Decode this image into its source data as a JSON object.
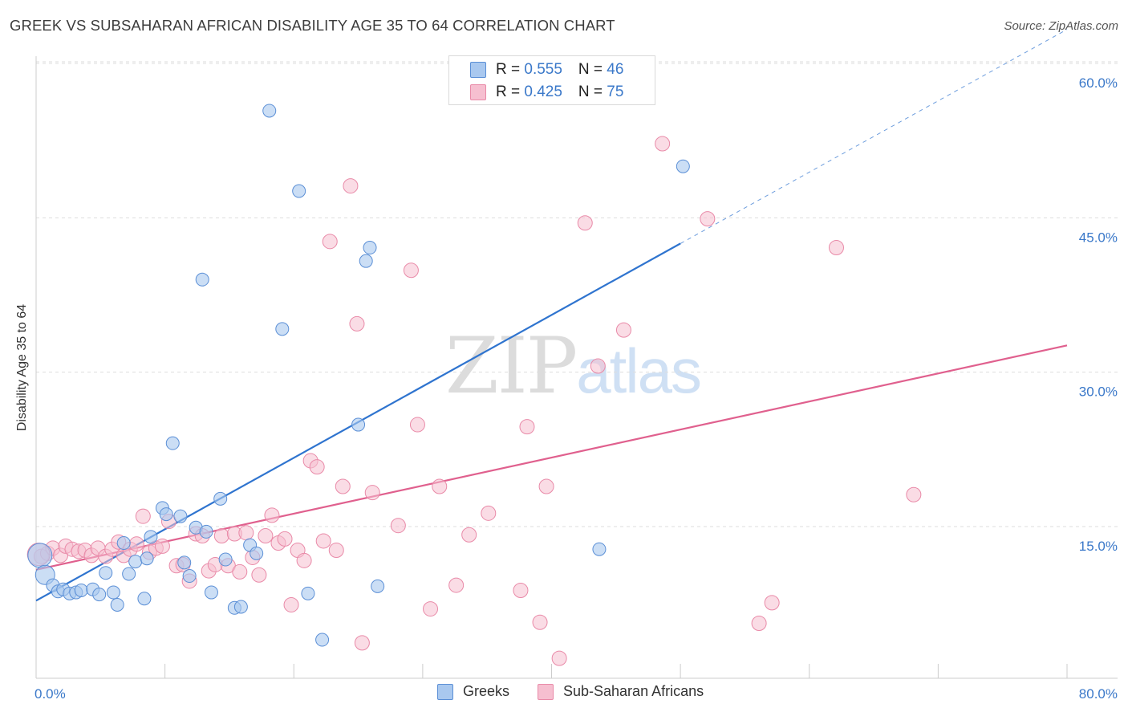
{
  "title": "GREEK VS SUBSAHARAN AFRICAN DISABILITY AGE 35 TO 64 CORRELATION CHART",
  "source": "Source: ZipAtlas.com",
  "watermark": {
    "part1": "ZIP",
    "part2": "atlas"
  },
  "legend_top": [
    {
      "r_label": "R = ",
      "r_value": "0.555",
      "n_label": "N = ",
      "n_value": "46"
    },
    {
      "r_label": "R = ",
      "r_value": "0.425",
      "n_label": "N = ",
      "n_value": "75"
    }
  ],
  "legend_bottom": [
    "Greeks",
    "Sub-Saharan Africans"
  ],
  "colors": {
    "greeks_fill": "#a9c8ef",
    "greeks_stroke": "#5b8fd6",
    "greeks_line": "#2f74cf",
    "ssa_fill": "#f6bfd0",
    "ssa_stroke": "#e98aa8",
    "ssa_line": "#e0608e",
    "axis_text": "#3a78c9",
    "grid": "#dddddd"
  },
  "chart_data": {
    "type": "scatter",
    "title": "GREEK VS SUBSAHARAN AFRICAN DISABILITY AGE 35 TO 64 CORRELATION CHART",
    "xlabel": "",
    "ylabel": "Disability Age 35 to 64",
    "xlim": [
      0,
      80
    ],
    "ylim": [
      0,
      63
    ],
    "x_tick_labels": [
      "0.0%",
      "80.0%"
    ],
    "y_ticks": [
      15,
      30,
      45,
      60
    ],
    "y_tick_labels": [
      "15.0%",
      "30.0%",
      "45.0%",
      "60.0%"
    ],
    "grid": "horizontal dashed",
    "legend_position": "top-center and bottom",
    "series": [
      {
        "name": "Greeks",
        "r": 0.555,
        "n": 46,
        "trend": {
          "x_start": 0,
          "y_start": 7.8,
          "x_solid_end": 50,
          "y_solid_end": 42.5,
          "x_dashed_end": 80,
          "y_dashed_end": 63.3
        },
        "points": [
          [
            0.3,
            12.2
          ],
          [
            0.7,
            10.3
          ],
          [
            1.3,
            9.3
          ],
          [
            1.7,
            8.7
          ],
          [
            2.1,
            8.9
          ],
          [
            2.6,
            8.5
          ],
          [
            3.1,
            8.6
          ],
          [
            3.5,
            8.8
          ],
          [
            4.4,
            8.9
          ],
          [
            4.9,
            8.4
          ],
          [
            5.4,
            10.5
          ],
          [
            6.0,
            8.6
          ],
          [
            6.3,
            7.4
          ],
          [
            6.8,
            13.4
          ],
          [
            7.2,
            10.4
          ],
          [
            7.7,
            11.6
          ],
          [
            8.4,
            8.0
          ],
          [
            8.6,
            11.9
          ],
          [
            8.9,
            14.0
          ],
          [
            9.8,
            16.8
          ],
          [
            10.1,
            16.2
          ],
          [
            10.6,
            23.1
          ],
          [
            11.2,
            16.0
          ],
          [
            11.5,
            11.5
          ],
          [
            11.9,
            10.2
          ],
          [
            12.4,
            14.9
          ],
          [
            12.9,
            39.0
          ],
          [
            13.2,
            14.5
          ],
          [
            13.6,
            8.6
          ],
          [
            14.3,
            17.7
          ],
          [
            14.7,
            11.8
          ],
          [
            15.4,
            7.1
          ],
          [
            15.9,
            7.2
          ],
          [
            16.6,
            13.2
          ],
          [
            17.1,
            12.4
          ],
          [
            18.1,
            55.4
          ],
          [
            19.1,
            34.2
          ],
          [
            20.4,
            47.6
          ],
          [
            21.1,
            8.5
          ],
          [
            22.2,
            4.0
          ],
          [
            25.0,
            24.9
          ],
          [
            25.6,
            40.8
          ],
          [
            25.9,
            42.1
          ],
          [
            43.7,
            12.8
          ],
          [
            50.2,
            50.0
          ],
          [
            26.5,
            9.2
          ]
        ]
      },
      {
        "name": "Sub-Saharan Africans",
        "r": 0.425,
        "n": 75,
        "trend": {
          "x_start": 0,
          "y_start": 10.8,
          "x_end": 80,
          "y_end": 32.6
        },
        "points": [
          [
            0.4,
            12.1
          ],
          [
            0.9,
            12.4
          ],
          [
            1.3,
            12.9
          ],
          [
            1.9,
            12.2
          ],
          [
            2.3,
            13.1
          ],
          [
            2.8,
            12.8
          ],
          [
            3.3,
            12.6
          ],
          [
            3.8,
            12.7
          ],
          [
            4.3,
            12.2
          ],
          [
            4.8,
            12.9
          ],
          [
            5.4,
            12.1
          ],
          [
            5.9,
            12.8
          ],
          [
            6.4,
            13.5
          ],
          [
            6.8,
            12.2
          ],
          [
            7.3,
            12.8
          ],
          [
            7.8,
            13.3
          ],
          [
            8.3,
            16.0
          ],
          [
            8.8,
            12.5
          ],
          [
            9.3,
            12.9
          ],
          [
            9.8,
            13.1
          ],
          [
            10.3,
            15.5
          ],
          [
            10.9,
            11.2
          ],
          [
            11.4,
            11.3
          ],
          [
            11.9,
            9.7
          ],
          [
            12.4,
            14.3
          ],
          [
            12.9,
            14.1
          ],
          [
            13.4,
            10.7
          ],
          [
            13.9,
            11.3
          ],
          [
            14.4,
            14.1
          ],
          [
            14.9,
            11.2
          ],
          [
            15.4,
            14.3
          ],
          [
            15.8,
            10.6
          ],
          [
            16.3,
            14.4
          ],
          [
            16.8,
            12.0
          ],
          [
            17.3,
            10.3
          ],
          [
            17.8,
            14.1
          ],
          [
            18.3,
            16.1
          ],
          [
            18.8,
            13.4
          ],
          [
            19.3,
            13.8
          ],
          [
            19.8,
            7.4
          ],
          [
            20.3,
            12.7
          ],
          [
            20.8,
            11.7
          ],
          [
            21.3,
            21.4
          ],
          [
            21.8,
            20.8
          ],
          [
            22.3,
            13.6
          ],
          [
            22.8,
            42.7
          ],
          [
            23.3,
            12.7
          ],
          [
            23.8,
            18.9
          ],
          [
            24.4,
            48.1
          ],
          [
            24.9,
            34.7
          ],
          [
            25.3,
            3.7
          ],
          [
            26.1,
            18.3
          ],
          [
            28.1,
            15.1
          ],
          [
            29.1,
            39.9
          ],
          [
            29.6,
            24.9
          ],
          [
            30.6,
            7.0
          ],
          [
            31.3,
            18.9
          ],
          [
            32.6,
            9.3
          ],
          [
            33.6,
            14.2
          ],
          [
            35.1,
            16.3
          ],
          [
            37.6,
            8.8
          ],
          [
            38.1,
            24.7
          ],
          [
            39.1,
            5.7
          ],
          [
            39.6,
            18.9
          ],
          [
            40.6,
            2.2
          ],
          [
            42.6,
            44.5
          ],
          [
            43.6,
            30.6
          ],
          [
            45.6,
            34.1
          ],
          [
            48.6,
            52.2
          ],
          [
            52.1,
            44.9
          ],
          [
            56.1,
            5.6
          ],
          [
            57.1,
            7.6
          ],
          [
            62.1,
            42.1
          ],
          [
            68.1,
            18.1
          ],
          [
            0.2,
            12.3
          ]
        ]
      }
    ]
  }
}
